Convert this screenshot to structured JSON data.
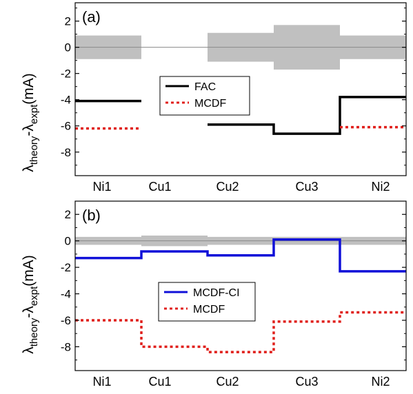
{
  "figure": {
    "ylabel_main": "λ",
    "ylabel_sub1": "theory",
    "ylabel_mid": "-λ",
    "ylabel_sub2": "expt",
    "ylabel_unit": "(mA)"
  },
  "colors": {
    "band": "#c0c0c0",
    "zero_line": "#8a8a8a",
    "fac": "#000000",
    "mcdf": "#e0201c",
    "mcdf_ci": "#1010d8",
    "frame": "#000000"
  },
  "chart_data": [
    {
      "panel_label": "(a)",
      "type": "line",
      "step": true,
      "categories": [
        "Ni1",
        "Cu1",
        "Cu2",
        "Cu3",
        "Ni2"
      ],
      "ylim": [
        -9.8,
        3.4
      ],
      "yticks": [
        2,
        0,
        -2,
        -4,
        -6,
        -8
      ],
      "grid": false,
      "legend_position": "center",
      "uncertainty_band": [
        0.9,
        null,
        1.1,
        1.7,
        0.9
      ],
      "series": [
        {
          "name": "FAC",
          "style": "solid",
          "color_key": "fac",
          "values": [
            -4.1,
            null,
            -5.9,
            -6.6,
            -3.8
          ]
        },
        {
          "name": "MCDF",
          "style": "dotted",
          "color_key": "mcdf",
          "values": [
            -6.2,
            null,
            null,
            null,
            -6.1
          ]
        }
      ]
    },
    {
      "panel_label": "(b)",
      "type": "line",
      "step": true,
      "categories": [
        "Ni1",
        "Cu1",
        "Cu2",
        "Cu3",
        "Ni2"
      ],
      "ylim": [
        -9.8,
        3.0
      ],
      "yticks": [
        2,
        0,
        -2,
        -4,
        -6,
        -8
      ],
      "grid": false,
      "legend_position": "center",
      "uncertainty_band": [
        0.3,
        0.4,
        0.3,
        0.3,
        0.3
      ],
      "series": [
        {
          "name": "MCDF-CI",
          "style": "solid",
          "color_key": "mcdf_ci",
          "values": [
            -1.3,
            -0.8,
            -1.1,
            0.1,
            -2.3
          ]
        },
        {
          "name": "MCDF",
          "style": "dotted",
          "color_key": "mcdf",
          "values": [
            -6.0,
            -8.0,
            -8.4,
            -6.1,
            -5.4
          ]
        }
      ]
    }
  ]
}
